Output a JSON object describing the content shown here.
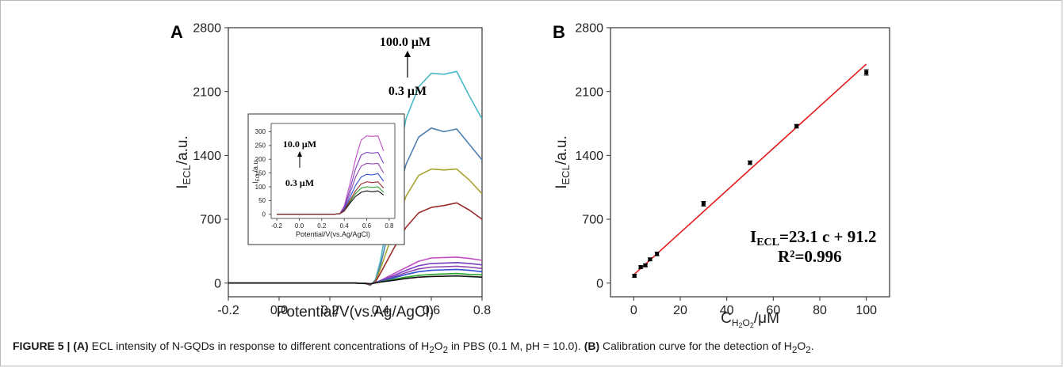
{
  "panel_a": {
    "letter": "A",
    "annotation_high": "100.0 μM",
    "annotation_low": "0.3 μM",
    "inset_annotation_high": "10.0 μM",
    "inset_annotation_low": "0.3 μM"
  },
  "panel_b": {
    "letter": "B",
    "equation_lhs": "I",
    "equation_sub": "ECL",
    "equation_rhs": "=23.1 c + 91.2",
    "r2": "R²=0.996"
  },
  "caption": {
    "figure_label": "FIGURE 5 |",
    "a_label": "(A)",
    "a_text_1": " ECL intensity of N-GQDs in response to different concentrations of H",
    "a_sub1": "2",
    "a_text_2": "O",
    "a_sub2": "2",
    "a_text_3": " in PBS (0.1 M, pH = 10.0). ",
    "b_label": "(B)",
    "b_text_1": " Calibration curve for the detection of H",
    "b_sub1": "2",
    "b_text_2": "O",
    "b_sub2": "2",
    "b_text_3": "."
  },
  "colors": {
    "fit_line": "#e31a1c",
    "cyan": "#4bb8c6",
    "steel": "#4f80b0",
    "olive": "#a8a432",
    "darkred": "#9c2c2c",
    "magenta": "#c24fc2",
    "purple": "#7a3fc0",
    "violet": "#8e44ad",
    "blue": "#2f4fd0",
    "green": "#2ca02c",
    "black": "#111111"
  },
  "chart_data": [
    {
      "type": "line",
      "panel": "A",
      "xlabel": "Potential/V(vs.Ag/AgCl)",
      "ylabel": "I_ECL/a.u.",
      "xlim": [
        -0.2,
        0.8
      ],
      "ylim": [
        -150,
        2800
      ],
      "xticks": [
        "-0.2",
        "0.0",
        "0.2",
        "0.4",
        "0.6",
        "0.8"
      ],
      "yticks": [
        "0",
        "700",
        "1400",
        "2100",
        "2800"
      ],
      "x": [
        -0.2,
        0.3,
        0.34,
        0.36,
        0.38,
        0.4,
        0.45,
        0.5,
        0.55,
        0.6,
        0.65,
        0.7,
        0.75,
        0.8
      ],
      "series": [
        {
          "color": "cyan",
          "values": [
            0,
            0,
            -5,
            -25,
            40,
            250,
            1050,
            1800,
            2150,
            2300,
            2290,
            2320,
            2050,
            1800
          ]
        },
        {
          "color": "steel",
          "values": [
            0,
            0,
            -5,
            -22,
            30,
            200,
            780,
            1300,
            1600,
            1700,
            1660,
            1690,
            1520,
            1350
          ]
        },
        {
          "color": "olive",
          "values": [
            0,
            0,
            -5,
            -20,
            20,
            160,
            560,
            950,
            1180,
            1250,
            1240,
            1250,
            1130,
            980
          ]
        },
        {
          "color": "darkred",
          "values": [
            0,
            0,
            -5,
            -18,
            15,
            110,
            370,
            610,
            770,
            830,
            850,
            880,
            800,
            700
          ]
        },
        {
          "color": "magenta",
          "values": [
            0,
            0,
            -3,
            -12,
            5,
            30,
            100,
            170,
            240,
            275,
            280,
            285,
            270,
            250
          ]
        },
        {
          "color": "purple",
          "values": [
            0,
            0,
            -3,
            -10,
            4,
            25,
            80,
            140,
            190,
            215,
            220,
            225,
            215,
            200
          ]
        },
        {
          "color": "violet",
          "values": [
            0,
            0,
            -3,
            -10,
            3,
            22,
            65,
            115,
            155,
            175,
            180,
            185,
            175,
            160
          ]
        },
        {
          "color": "blue",
          "values": [
            0,
            0,
            -3,
            -9,
            3,
            20,
            55,
            95,
            125,
            140,
            145,
            150,
            140,
            125
          ]
        },
        {
          "color": "green",
          "values": [
            0,
            0,
            -3,
            -8,
            2,
            15,
            40,
            65,
            85,
            95,
            100,
            105,
            95,
            90
          ]
        },
        {
          "color": "black",
          "values": [
            0,
            0,
            -3,
            -8,
            2,
            12,
            30,
            50,
            65,
            72,
            75,
            78,
            72,
            65
          ]
        }
      ],
      "inset": {
        "xlabel": "Potential/V(vs.Ag/AgCl)",
        "ylabel": "I_ECL/a.u.",
        "xlim": [
          -0.25,
          0.85
        ],
        "ylim": [
          -15,
          330
        ],
        "xticks": [
          "-0.2",
          "0.0",
          "0.2",
          "0.4",
          "0.6",
          "0.8"
        ],
        "yticks": [
          "0",
          "50",
          "100",
          "150",
          "200",
          "250",
          "300"
        ],
        "x": [
          -0.2,
          0.3,
          0.36,
          0.4,
          0.45,
          0.5,
          0.55,
          0.6,
          0.65,
          0.7,
          0.75
        ],
        "series": [
          {
            "color": "magenta",
            "values": [
              0,
              0,
              2,
              30,
              110,
              200,
              270,
              285,
              283,
              285,
              230
            ]
          },
          {
            "color": "purple",
            "values": [
              0,
              0,
              2,
              25,
              90,
              165,
              215,
              225,
              222,
              225,
              185
            ]
          },
          {
            "color": "violet",
            "values": [
              0,
              0,
              2,
              20,
              75,
              135,
              175,
              185,
              183,
              185,
              150
            ]
          },
          {
            "color": "blue",
            "values": [
              0,
              0,
              2,
              18,
              60,
              105,
              135,
              145,
              143,
              148,
              120
            ]
          },
          {
            "color": "green",
            "values": [
              0,
              0,
              2,
              14,
              45,
              75,
              95,
              100,
              98,
              100,
              80
            ]
          },
          {
            "color": "black",
            "values": [
              0,
              0,
              2,
              12,
              40,
              65,
              80,
              85,
              82,
              85,
              70
            ]
          },
          {
            "color": "darkred",
            "values": [
              0,
              0,
              2,
              15,
              50,
              85,
              110,
              118,
              115,
              118,
              95
            ]
          }
        ]
      }
    },
    {
      "type": "scatter",
      "panel": "B",
      "xlabel": "C_H2O2/μM",
      "ylabel": "I_ECL/a.u.",
      "xlim": [
        -10,
        110
      ],
      "ylim": [
        -150,
        2800
      ],
      "xticks": [
        "0",
        "20",
        "40",
        "60",
        "80",
        "100"
      ],
      "yticks": [
        "0",
        "700",
        "1400",
        "2100",
        "2800"
      ],
      "points": [
        {
          "x": 0.3,
          "y": 80,
          "err": 15
        },
        {
          "x": 3,
          "y": 175,
          "err": 15
        },
        {
          "x": 5,
          "y": 195,
          "err": 15
        },
        {
          "x": 7,
          "y": 260,
          "err": 15
        },
        {
          "x": 10,
          "y": 320,
          "err": 20
        },
        {
          "x": 30,
          "y": 870,
          "err": 25
        },
        {
          "x": 50,
          "y": 1320,
          "err": 20
        },
        {
          "x": 70,
          "y": 1720,
          "err": 20
        },
        {
          "x": 100,
          "y": 2310,
          "err": 30
        }
      ],
      "fit": {
        "slope": 23.1,
        "intercept": 91.2,
        "x_range": [
          0,
          100
        ]
      }
    }
  ]
}
